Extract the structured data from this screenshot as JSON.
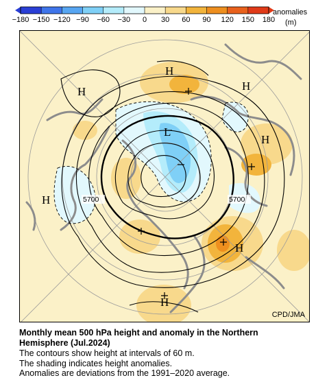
{
  "colorbar": {
    "unit_label": "anomalies",
    "unit": "(m)",
    "ticks": [
      "-180",
      "-150",
      "-120",
      "-90",
      "-60",
      "-30",
      "0",
      "30",
      "60",
      "90",
      "120",
      "150",
      "180"
    ],
    "colors": [
      "#2a3fd6",
      "#3f75ea",
      "#57a6f2",
      "#7fd0f7",
      "#b4ecfb",
      "#e2f8fd",
      "#fbf1c8",
      "#f8d98c",
      "#f2b43c",
      "#ee8f1f",
      "#e9611c",
      "#e03a18"
    ]
  },
  "map": {
    "high_labels": [
      "H",
      "H",
      "H",
      "H",
      "H",
      "H",
      "H"
    ],
    "low_label": "L",
    "contour_labels": [
      "5700",
      "5700"
    ],
    "credit": "CPD/JMA"
  },
  "caption": {
    "title_line1": "Monthly mean 500 hPa height and anomaly in the Northern",
    "title_line2": "Hemisphere (Jul.2024)",
    "line1": "The contours show height at intervals of 60 m.",
    "line2": "The shading indicates height anomalies.",
    "line3": "Anomalies are deviations from the 1991–2020 average."
  }
}
